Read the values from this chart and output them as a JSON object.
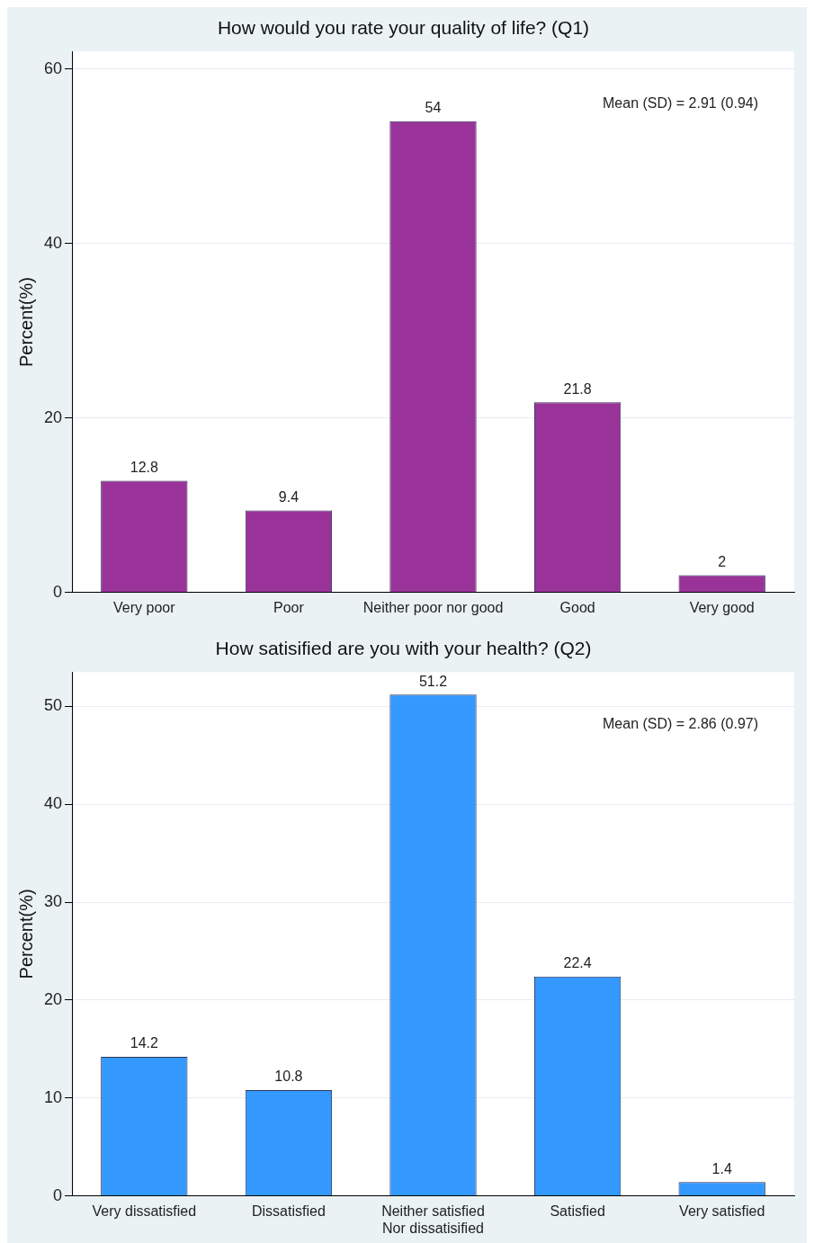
{
  "chart_data": [
    {
      "type": "bar",
      "title": "How would you rate your quality of life? (Q1)",
      "ylabel": "Percent(%)",
      "categories": [
        "Very poor",
        "Poor",
        "Neither poor nor good",
        "Good",
        "Very good"
      ],
      "values": [
        12.8,
        9.4,
        54,
        21.8,
        2
      ],
      "color": "#993399",
      "ylim": [
        0,
        62
      ],
      "yticks": [
        0,
        20,
        40,
        60
      ],
      "grid": "y",
      "data_labels": true,
      "annotations": [
        "Mean (SD) = 2.91 (0.94)"
      ]
    },
    {
      "type": "bar",
      "title": "How satisified are you with your health? (Q2)",
      "ylabel": "Percent(%)",
      "categories": [
        "Very dissatisfied",
        "Dissatisfied",
        "Neither satisfied\nNor dissatisified",
        "Satisfied",
        "Very satisfied"
      ],
      "values": [
        14.2,
        10.8,
        51.2,
        22.4,
        1.4
      ],
      "color": "#3399ff",
      "ylim": [
        0,
        53.5
      ],
      "yticks": [
        0,
        10,
        20,
        30,
        40,
        50
      ],
      "grid": "y",
      "data_labels": true,
      "annotations": [
        "Mean (SD) = 2.86 (0.97)"
      ]
    }
  ]
}
